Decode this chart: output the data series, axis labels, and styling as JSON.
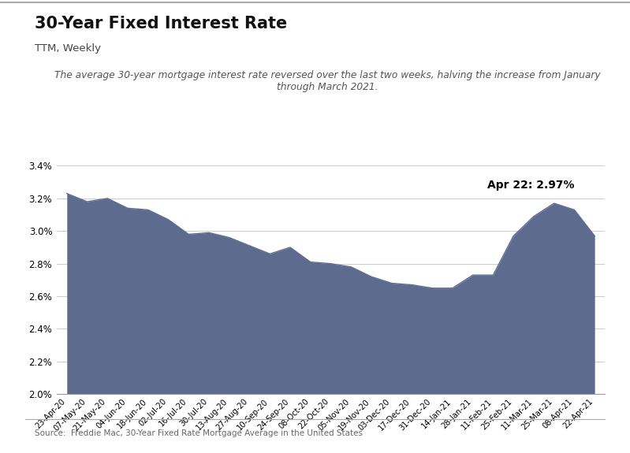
{
  "title": "30-Year Fixed Interest Rate",
  "subtitle": "TTM, Weekly",
  "annotation": "The average 30-year mortgage interest rate reversed over the last two weeks, halving the increase from January\nthrough March 2021.",
  "last_label": "Apr 22: 2.97%",
  "source": "Source:  Freddie Mac, 30-Year Fixed Rate Mortgage Average in the United States",
  "fill_color": "#5d6b8f",
  "background_color": "#ffffff",
  "ylim": [
    2.0,
    3.5
  ],
  "yticks": [
    2.0,
    2.2,
    2.4,
    2.6,
    2.8,
    3.0,
    3.2,
    3.4
  ],
  "dates": [
    "23-Apr-20",
    "07-May-20",
    "21-May-20",
    "04-Jun-20",
    "18-Jun-20",
    "02-Jul-20",
    "16-Jul-20",
    "30-Jul-20",
    "13-Aug-20",
    "27-Aug-20",
    "10-Sep-20",
    "24-Sep-20",
    "08-Oct-20",
    "22-Oct-20",
    "05-Nov-20",
    "19-Nov-20",
    "03-Dec-20",
    "17-Dec-20",
    "31-Dec-20",
    "14-Jan-21",
    "28-Jan-21",
    "11-Feb-21",
    "25-Feb-21",
    "11-Mar-21",
    "25-Mar-21",
    "08-Apr-21",
    "22-Apr-21"
  ],
  "values": [
    3.23,
    3.18,
    3.2,
    3.14,
    3.13,
    3.07,
    2.98,
    2.99,
    2.96,
    2.91,
    2.86,
    2.9,
    2.81,
    2.8,
    2.78,
    2.72,
    2.68,
    2.67,
    2.65,
    2.65,
    2.73,
    2.73,
    2.97,
    3.09,
    3.17,
    3.13,
    2.97
  ]
}
